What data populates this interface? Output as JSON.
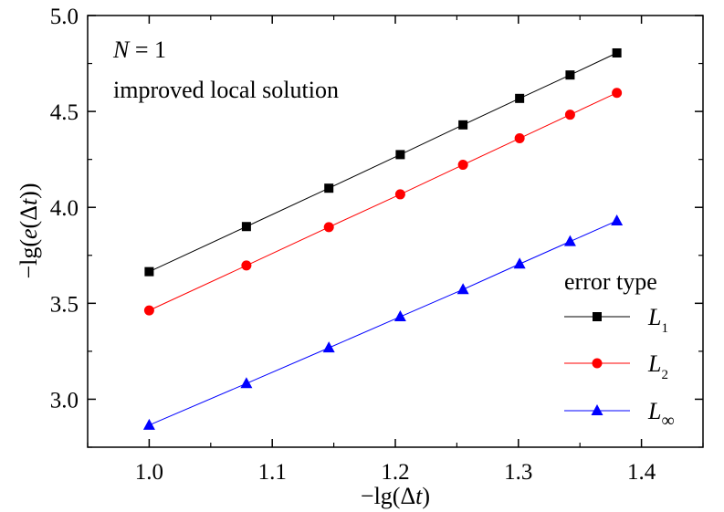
{
  "chart_data": {
    "type": "line",
    "x": [
      1.0,
      1.079,
      1.146,
      1.204,
      1.255,
      1.301,
      1.342,
      1.38
    ],
    "series": [
      {
        "name": "L1",
        "label_main": "L",
        "label_sub": "1",
        "color": "#000000",
        "marker": "square",
        "values": [
          3.665,
          3.9,
          4.1,
          4.275,
          4.43,
          4.568,
          4.69,
          4.805
        ]
      },
      {
        "name": "L2",
        "label_main": "L",
        "label_sub": "2",
        "color": "#ff0000",
        "marker": "circle",
        "values": [
          3.463,
          3.697,
          3.897,
          4.068,
          4.222,
          4.36,
          4.483,
          4.597
        ]
      },
      {
        "name": "L∞",
        "label_main": "L",
        "label_sub": "∞",
        "color": "#0000ff",
        "marker": "triangle",
        "values": [
          2.865,
          3.082,
          3.268,
          3.43,
          3.572,
          3.705,
          3.822,
          3.93
        ]
      }
    ],
    "xlim": [
      0.95,
      1.45
    ],
    "ylim": [
      2.75,
      5.0
    ],
    "xticks": [
      1.0,
      1.1,
      1.2,
      1.3,
      1.4
    ],
    "xtick_labels": [
      "1.0",
      "1.1",
      "1.2",
      "1.3",
      "1.4"
    ],
    "yticks": [
      3.0,
      3.5,
      4.0,
      4.5,
      5.0
    ],
    "ytick_labels": [
      "3.0",
      "3.5",
      "4.0",
      "4.5",
      "5.0"
    ],
    "x_minor_step": 0.05,
    "y_minor_step": 0.25,
    "xlabel": "−lg(Δt)",
    "ylabel": "−lg(e(Δt))",
    "annotations": {
      "line1": "N = 1",
      "line2": "improved local solution"
    },
    "legend": {
      "title": "error type",
      "placement": "bottom-right"
    },
    "grid": false
  }
}
